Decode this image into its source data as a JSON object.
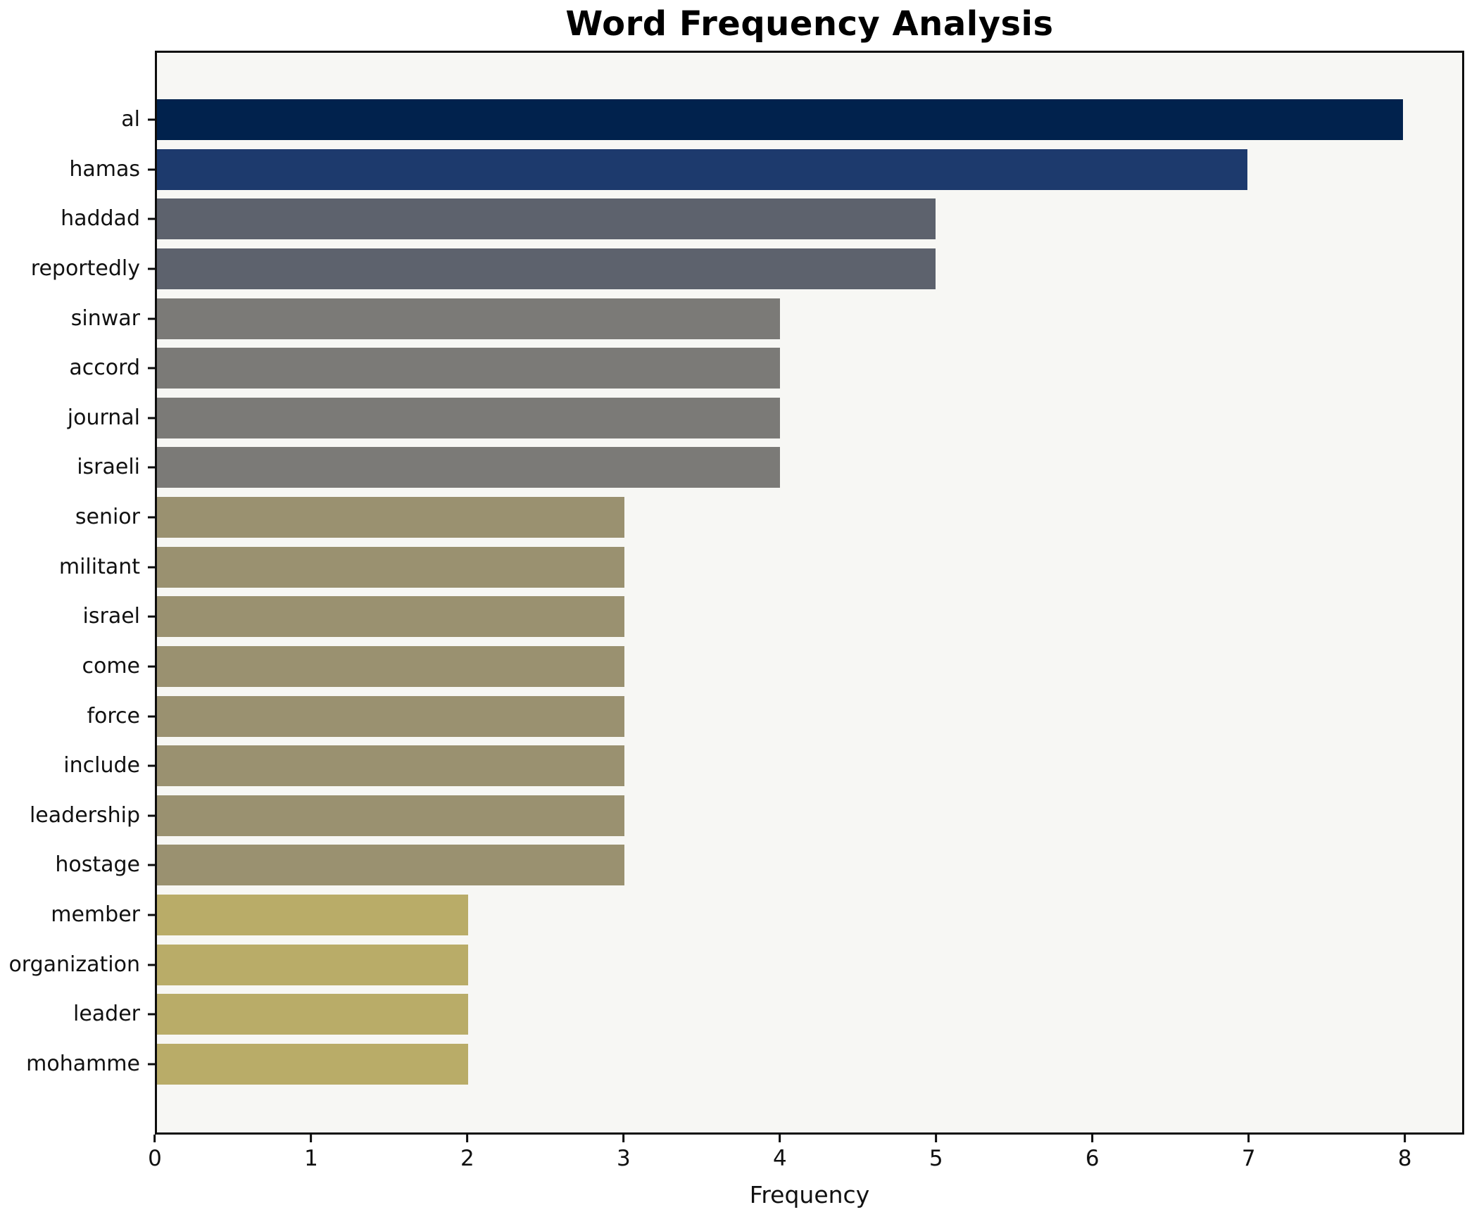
{
  "chart_data": {
    "type": "bar",
    "orientation": "horizontal",
    "title": "Word Frequency Analysis",
    "xlabel": "Frequency",
    "ylabel": "",
    "categories": [
      "al",
      "hamas",
      "haddad",
      "reportedly",
      "sinwar",
      "accord",
      "journal",
      "israeli",
      "senior",
      "militant",
      "israel",
      "come",
      "force",
      "include",
      "leadership",
      "hostage",
      "member",
      "organization",
      "leader",
      "mohamme"
    ],
    "values": [
      8,
      7,
      5,
      5,
      4,
      4,
      4,
      4,
      3,
      3,
      3,
      3,
      3,
      3,
      3,
      3,
      2,
      2,
      2,
      2
    ],
    "bar_colors": [
      "#01224d",
      "#1d3a6d",
      "#5d626d",
      "#5d626d",
      "#7b7a77",
      "#7b7a77",
      "#7b7a77",
      "#7b7a77",
      "#9a9170",
      "#9a9170",
      "#9a9170",
      "#9a9170",
      "#9a9170",
      "#9a9170",
      "#9a9170",
      "#9a9170",
      "#b9ac68",
      "#b9ac68",
      "#b9ac68",
      "#b9ac68"
    ],
    "xticks": [
      0,
      1,
      2,
      3,
      4,
      5,
      6,
      7,
      8
    ],
    "xlim": [
      0,
      8.38
    ],
    "grid": false,
    "legend_position": "none",
    "plot_background": "#f7f7f4",
    "figure_background": "#ffffff",
    "spine_color": "#0d0d0d",
    "text_color": "#111111"
  }
}
